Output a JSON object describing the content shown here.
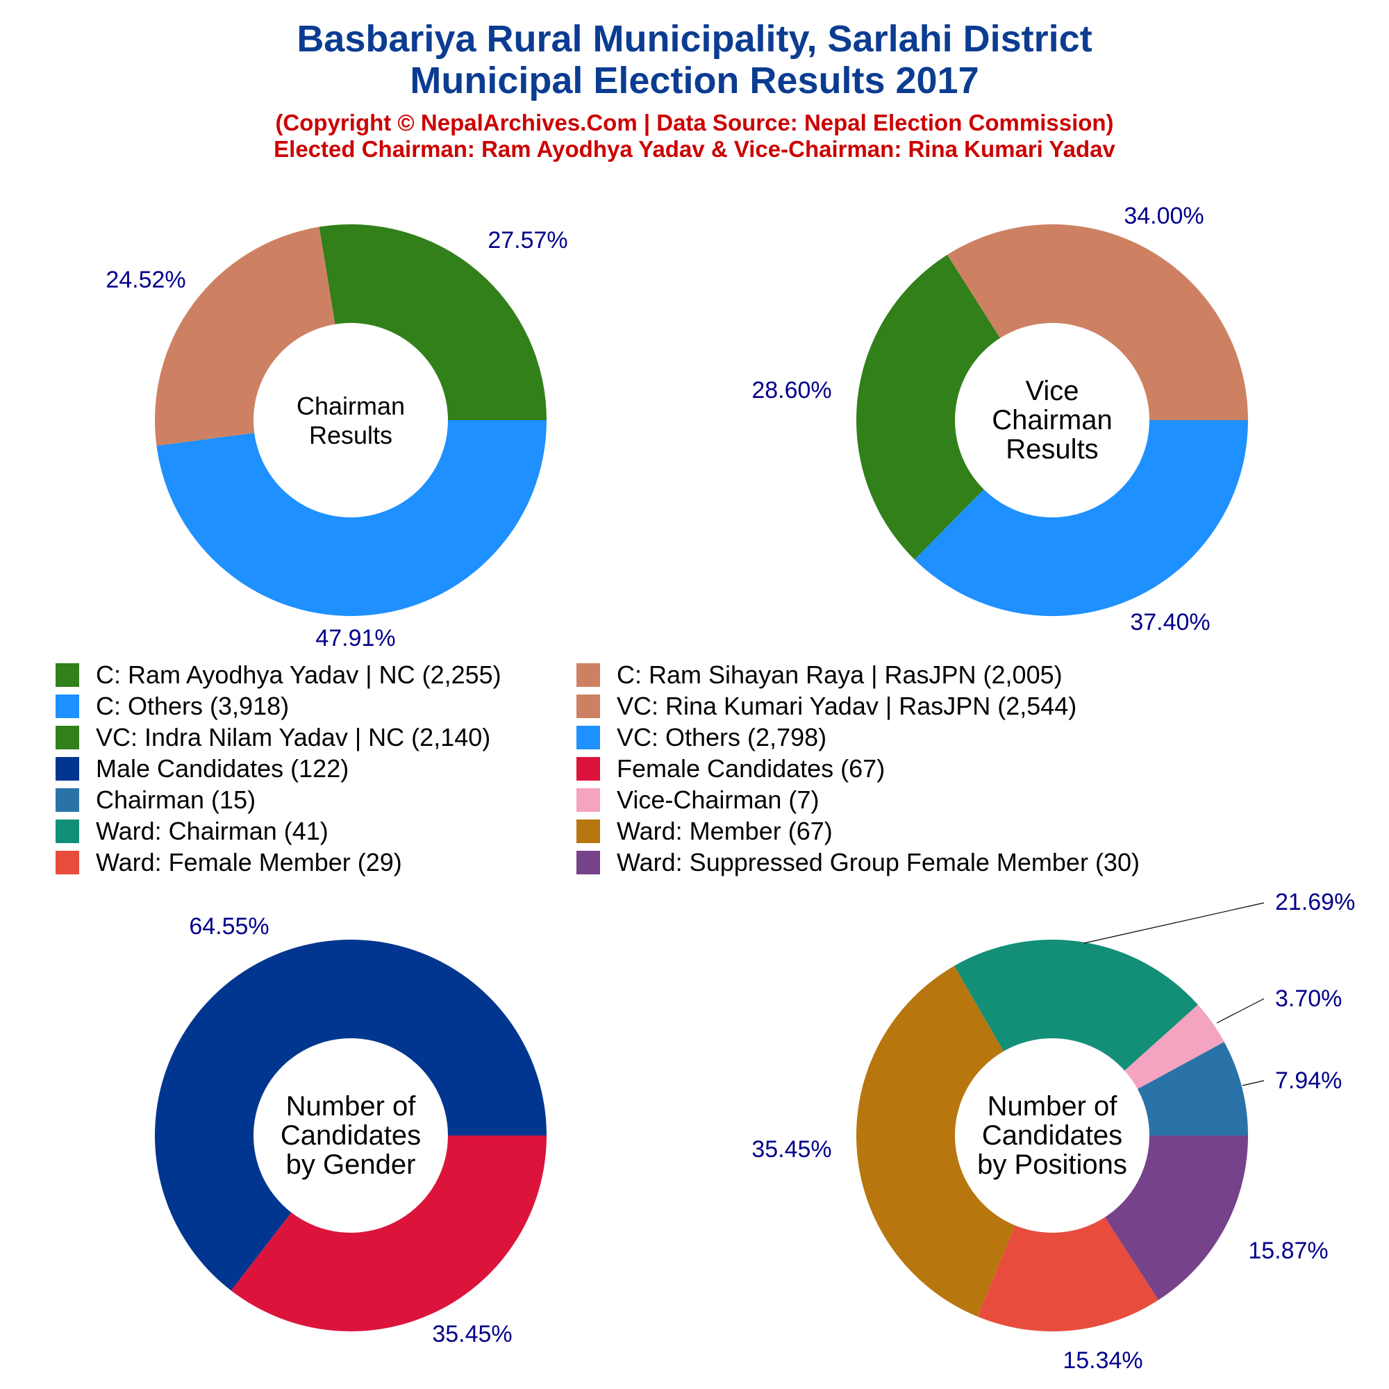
{
  "header": {
    "title_line1": "Basbariya Rural Municipality, Sarlahi District",
    "title_line2": "Municipal Election Results 2017",
    "subtitle_line1": "(Copyright © NepalArchives.Com | Data Source: Nepal Election Commission)",
    "subtitle_line2": "Elected Chairman: Ram Ayodhya Yadav & Vice-Chairman: Rina Kumari Yadav"
  },
  "colors": {
    "title": "#0b3c91",
    "subtitle": "#cc0000",
    "pct_label": "#00008b"
  },
  "legend": [
    {
      "label": "C: Ram Ayodhya Yadav | NC (2,255)",
      "color": "#31801a"
    },
    {
      "label": "C: Ram Sihayan Raya | RasJPN (2,005)",
      "color": "#cd8162"
    },
    {
      "label": "C: Others (3,918)",
      "color": "#1e90ff"
    },
    {
      "label": "VC: Rina Kumari Yadav | RasJPN (2,544)",
      "color": "#cd8162"
    },
    {
      "label": "VC: Indra Nilam Yadav | NC (2,140)",
      "color": "#31801a"
    },
    {
      "label": "VC: Others (2,798)",
      "color": "#1e90ff"
    },
    {
      "label": "Male Candidates (122)",
      "color": "#00368f"
    },
    {
      "label": "Female Candidates (67)",
      "color": "#dc143c"
    },
    {
      "label": "Chairman (15)",
      "color": "#2a73a8"
    },
    {
      "label": "Vice-Chairman (7)",
      "color": "#f4a3c0"
    },
    {
      "label": "Ward: Chairman (41)",
      "color": "#138f78"
    },
    {
      "label": "Ward: Member (67)",
      "color": "#b8760f"
    },
    {
      "label": "Ward: Female Member (29)",
      "color": "#e84c3d"
    },
    {
      "label": "Ward: Suppressed Group Female Member (30)",
      "color": "#76428a"
    }
  ],
  "chart_data": [
    {
      "type": "pie",
      "center_label": [
        "Chairman",
        "Results"
      ],
      "slices": [
        {
          "name": "C: Ram Ayodhya Yadav | NC",
          "value": 2255,
          "pct_label": "27.57%",
          "color": "#31801a"
        },
        {
          "name": "C: Ram Sihayan Raya | RasJPN",
          "value": 2005,
          "pct_label": "24.52%",
          "color": "#cd8162"
        },
        {
          "name": "C: Others",
          "value": 3918,
          "pct_label": "47.91%",
          "color": "#1e90ff"
        }
      ]
    },
    {
      "type": "pie",
      "center_label": [
        "Vice",
        "Chairman",
        "Results"
      ],
      "slices": [
        {
          "name": "VC: Rina Kumari Yadav | RasJPN",
          "value": 2544,
          "pct_label": "34.00%",
          "color": "#cd8162"
        },
        {
          "name": "VC: Indra Nilam Yadav | NC",
          "value": 2140,
          "pct_label": "28.60%",
          "color": "#31801a"
        },
        {
          "name": "VC: Others",
          "value": 2798,
          "pct_label": "37.40%",
          "color": "#1e90ff"
        }
      ]
    },
    {
      "type": "pie",
      "center_label": [
        "Number of",
        "Candidates",
        "by Gender"
      ],
      "slices": [
        {
          "name": "Male Candidates",
          "value": 122,
          "pct_label": "64.55%",
          "color": "#00368f"
        },
        {
          "name": "Female Candidates",
          "value": 67,
          "pct_label": "35.45%",
          "color": "#dc143c"
        }
      ]
    },
    {
      "type": "pie",
      "center_label": [
        "Number of",
        "Candidates",
        "by Positions"
      ],
      "slices": [
        {
          "name": "Chairman",
          "value": 15,
          "pct_label": "7.94%",
          "color": "#2a73a8"
        },
        {
          "name": "Vice-Chairman",
          "value": 7,
          "pct_label": "3.70%",
          "color": "#f4a3c0"
        },
        {
          "name": "Ward: Chairman",
          "value": 41,
          "pct_label": "21.69%",
          "color": "#138f78"
        },
        {
          "name": "Ward: Member",
          "value": 67,
          "pct_label": "35.45%",
          "color": "#b8760f"
        },
        {
          "name": "Ward: Female Member",
          "value": 29,
          "pct_label": "15.34%",
          "color": "#e84c3d"
        },
        {
          "name": "Ward: Suppressed Group Female Member",
          "value": 30,
          "pct_label": "15.87%",
          "color": "#76428a"
        }
      ]
    }
  ]
}
